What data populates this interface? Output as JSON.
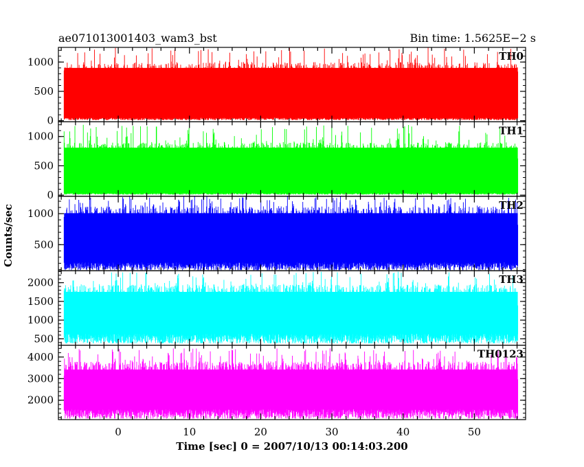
{
  "header": {
    "title": "ae071013001403_wam3_bst",
    "bin_time": "Bin time: 1.5625E−2 s"
  },
  "chart_data": {
    "type": "line",
    "x_range": [
      -8.4,
      57.2
    ],
    "x_ticks": [
      0,
      10,
      20,
      30,
      40,
      50
    ],
    "x_tick_labels": [
      "0",
      "10",
      "20",
      "30",
      "40",
      "50"
    ],
    "x_data_range": [
      -7.6,
      56.1
    ],
    "xlabel": "Time [sec] 0 = 2007/10/13 00:14:03.200",
    "ylabel": "Counts/sec",
    "panels": [
      {
        "name": "TH0",
        "color": "#ff0000",
        "ylim": [
          -20,
          1250
        ],
        "ticks": [
          0,
          500,
          1000
        ],
        "tick_labels": [
          "0",
          "500",
          "1000"
        ],
        "typical_low": 60,
        "typical_high": 1000,
        "peak": 1250,
        "floor": 10
      },
      {
        "name": "TH1",
        "color": "#00ff00",
        "ylim": [
          -20,
          1250
        ],
        "ticks": [
          0,
          500,
          1000
        ],
        "tick_labels": [
          "0",
          "500",
          "1000"
        ],
        "typical_low": 40,
        "typical_high": 900,
        "peak": 1200,
        "floor": 10
      },
      {
        "name": "TH2",
        "color": "#0000ff",
        "ylim": [
          80,
          1280
        ],
        "ticks": [
          500,
          1000
        ],
        "tick_labels": [
          "500",
          "1000"
        ],
        "typical_low": 250,
        "typical_high": 1120,
        "peak": 1280,
        "floor": 90
      },
      {
        "name": "TH3",
        "color": "#00ffff",
        "ylim": [
          330,
          2320
        ],
        "ticks": [
          500,
          1000,
          1500,
          2000
        ],
        "tick_labels": [
          "500",
          "1000",
          "1500",
          "2000"
        ],
        "typical_low": 700,
        "typical_high": 1950,
        "peak": 2300,
        "floor": 380
      },
      {
        "name": "TH0123",
        "color": "#ff00ff",
        "ylim": [
          1100,
          4550
        ],
        "ticks": [
          2000,
          3000,
          4000
        ],
        "tick_labels": [
          "2000",
          "3000",
          "4000"
        ],
        "typical_low": 1700,
        "typical_high": 3800,
        "peak": 4400,
        "floor": 1150
      }
    ]
  }
}
